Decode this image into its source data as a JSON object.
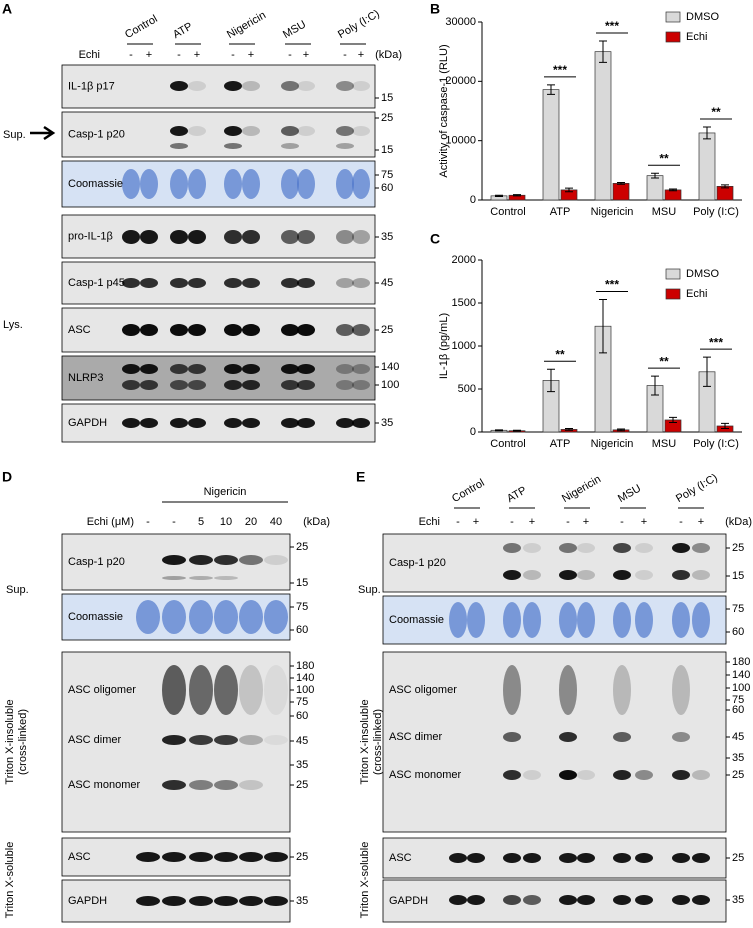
{
  "panel_a": {
    "letter": "A",
    "groups": [
      "Control",
      "ATP",
      "Nigericin",
      "MSU",
      "Poly (I:C)"
    ],
    "treatment_label": "Echi",
    "signs": [
      "-",
      "+"
    ],
    "kda": "(kDa)",
    "sections": [
      "Sup.",
      "Lys."
    ],
    "blots": [
      {
        "label": "IL-1β p17",
        "markers": [
          15
        ]
      },
      {
        "label": "Casp-1 p20",
        "markers": [
          25,
          15
        ]
      },
      {
        "label": "Coomassie",
        "markers": [
          75,
          60
        ]
      },
      {
        "label": "pro-IL-1β",
        "markers": [
          35
        ]
      },
      {
        "label": "Casp-1 p45",
        "markers": [
          45
        ]
      },
      {
        "label": "ASC",
        "markers": [
          25
        ]
      },
      {
        "label": "NLRP3",
        "markers": [
          140,
          100
        ]
      },
      {
        "label": "GAPDH",
        "markers": [
          35
        ]
      }
    ]
  },
  "chart_data": [
    {
      "type": "bar",
      "letter": "B",
      "ylabel": "Activity of caspase-1 (RLU)",
      "categories": [
        "Control",
        "ATP",
        "Nigericin",
        "MSU",
        "Poly (I:C)"
      ],
      "series": [
        {
          "name": "DMSO",
          "color": "#d9d9d9",
          "values": [
            700,
            18600,
            25000,
            4100,
            11300
          ],
          "errors": [
            100,
            800,
            1800,
            400,
            1000
          ]
        },
        {
          "name": "Echi",
          "color": "#cc0000",
          "values": [
            800,
            1700,
            2800,
            1700,
            2300
          ],
          "errors": [
            100,
            300,
            150,
            150,
            250
          ]
        }
      ],
      "significance": [
        null,
        "***",
        "***",
        "**",
        "**"
      ],
      "ylim": [
        0,
        30000
      ],
      "yticks": [
        0,
        10000,
        20000,
        30000
      ]
    },
    {
      "type": "bar",
      "letter": "C",
      "ylabel": "IL-1β (pg/mL)",
      "categories": [
        "Control",
        "ATP",
        "Nigericin",
        "MSU",
        "Poly (I:C)"
      ],
      "series": [
        {
          "name": "DMSO",
          "color": "#d9d9d9",
          "values": [
            20,
            600,
            1230,
            540,
            700
          ],
          "errors": [
            5,
            130,
            310,
            110,
            170
          ]
        },
        {
          "name": "Echi",
          "color": "#cc0000",
          "values": [
            15,
            30,
            25,
            140,
            70
          ],
          "errors": [
            5,
            10,
            10,
            30,
            30
          ]
        }
      ],
      "significance": [
        null,
        "**",
        "***",
        "**",
        "***"
      ],
      "ylim": [
        0,
        2000
      ],
      "yticks": [
        0,
        500,
        1000,
        1500,
        2000
      ]
    }
  ],
  "panel_d": {
    "letter": "D",
    "treatment": "Nigericin",
    "treatment_label": "Echi (μM)",
    "doses": [
      "-",
      "-",
      "5",
      "10",
      "20",
      "40"
    ],
    "kda": "(kDa)",
    "sections": [
      "Sup.",
      "Triton X-insoluble",
      "(cross-linked)",
      "Triton X-soluble"
    ],
    "blots": [
      {
        "label": "Casp-1 p20",
        "markers": [
          25,
          15
        ]
      },
      {
        "label": "Coomassie",
        "markers": [
          75,
          60
        ]
      },
      {
        "labels": [
          "ASC oligomer",
          "ASC dimer",
          "ASC monomer"
        ],
        "markers": [
          180,
          140,
          100,
          75,
          60,
          45,
          35,
          25
        ]
      },
      {
        "label": "ASC",
        "markers": [
          25
        ]
      },
      {
        "label": "GAPDH",
        "markers": [
          35
        ]
      }
    ]
  },
  "panel_e": {
    "letter": "E",
    "groups": [
      "Control",
      "ATP",
      "Nigericin",
      "MSU",
      "Poly (I:C)"
    ],
    "treatment_label": "Echi",
    "signs": [
      "-",
      "+"
    ],
    "kda": "(kDa)",
    "sections": [
      "Sup.",
      "Triton X-insoluble",
      "(cross-linked)",
      "Triton X-soluble"
    ],
    "blots": [
      {
        "label": "Casp-1 p20",
        "markers": [
          25,
          15
        ]
      },
      {
        "label": "Coomassie",
        "markers": [
          75,
          60
        ]
      },
      {
        "labels": [
          "ASC oligomer",
          "ASC dimer",
          "ASC monomer"
        ],
        "markers": [
          180,
          140,
          100,
          75,
          60,
          45,
          35,
          25
        ]
      },
      {
        "label": "ASC",
        "markers": [
          25
        ]
      },
      {
        "label": "GAPDH",
        "markers": [
          35
        ]
      }
    ]
  }
}
